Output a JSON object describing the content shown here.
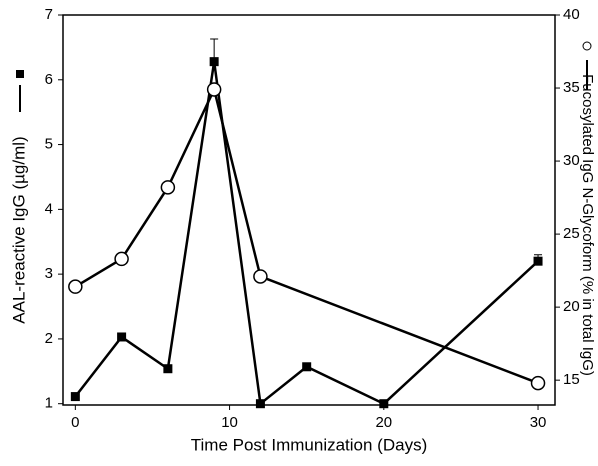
{
  "chart_data": {
    "type": "line",
    "x_label": "Time Post Immunization (Days)",
    "y_label": "AAL-reactive IgG (µg/ml)",
    "y2_label": "Fucosylated IgG N-Glycoform (% in total IgG)",
    "xlim": [
      -0.8,
      31.1
    ],
    "xticks": [
      0,
      10,
      20,
      30
    ],
    "ylim": [
      0.98,
      7
    ],
    "yticks": [
      1,
      2,
      3,
      4,
      5,
      6,
      7
    ],
    "y2lim": [
      13.3,
      40
    ],
    "y2ticks": [
      15,
      20,
      25,
      30,
      35,
      40
    ],
    "series": [
      {
        "marker": "square",
        "color": "#000000",
        "axis": "y",
        "x": [
          0,
          3,
          6,
          9,
          12,
          15,
          20,
          30
        ],
        "values": [
          1.11,
          2.03,
          1.54,
          6.28,
          1.0,
          1.57,
          1.0,
          3.2
        ],
        "errors": [
          null,
          null,
          null,
          0.35,
          null,
          null,
          null,
          0.1
        ]
      },
      {
        "marker": "circle",
        "color": "#000000",
        "axis": "y2",
        "x": [
          0,
          3,
          6,
          9,
          12,
          30
        ],
        "values": [
          21.4,
          23.3,
          28.2,
          34.9,
          22.1,
          14.8
        ]
      }
    ]
  }
}
